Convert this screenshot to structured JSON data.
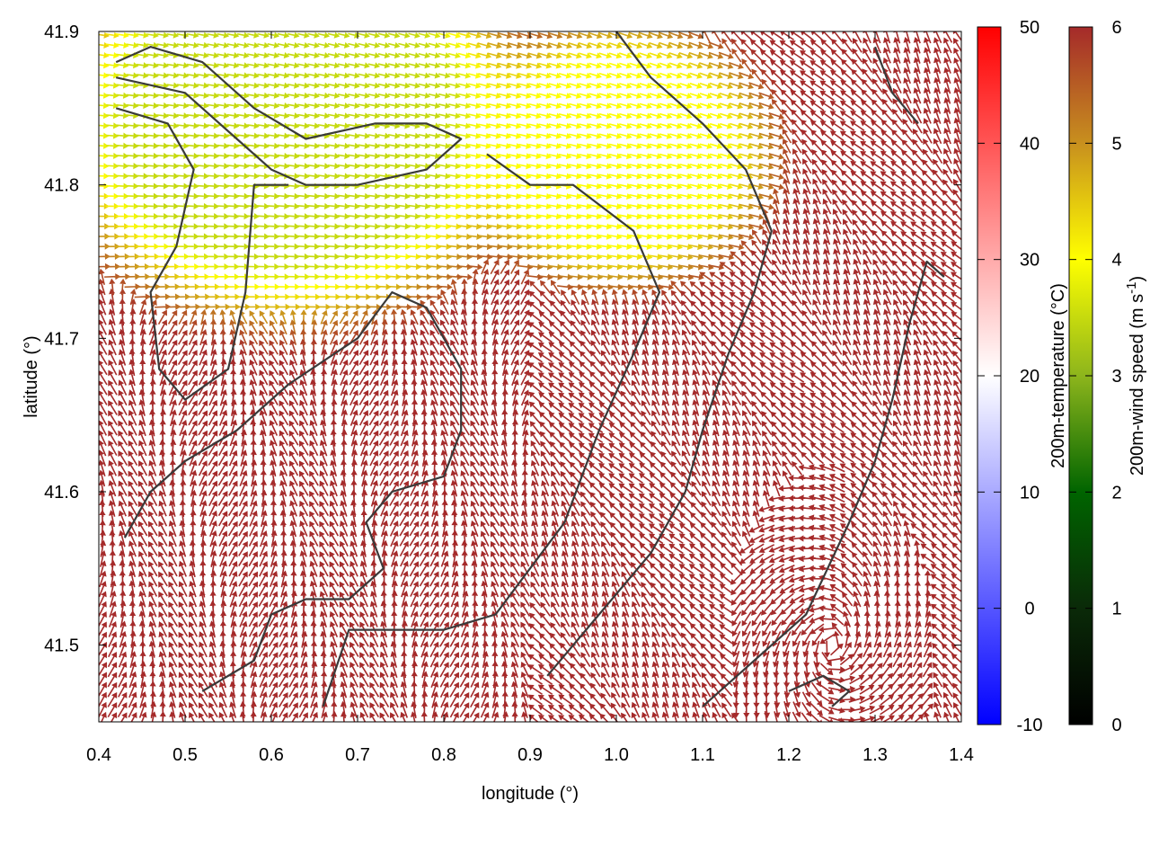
{
  "chart_data": {
    "type": "vector-field",
    "title": "",
    "xlabel": "longitude (°)",
    "ylabel": "latitude (°)",
    "xlim": [
      0.4,
      1.4
    ],
    "ylim": [
      41.45,
      41.9
    ],
    "xticks": [
      {
        "label": "0.4",
        "value": 0.4
      },
      {
        "label": "0.5",
        "value": 0.5
      },
      {
        "label": "0.6",
        "value": 0.6
      },
      {
        "label": "0.7",
        "value": 0.7
      },
      {
        "label": "0.8",
        "value": 0.8
      },
      {
        "label": "0.9",
        "value": 0.9
      },
      {
        "label": "1.0",
        "value": 1.0
      },
      {
        "label": "1.1",
        "value": 1.1
      },
      {
        "label": "1.2",
        "value": 1.2
      },
      {
        "label": "1.3",
        "value": 1.3
      },
      {
        "label": "1.4",
        "value": 1.4
      }
    ],
    "yticks": [
      {
        "label": "41.5",
        "value": 41.5
      },
      {
        "label": "41.6",
        "value": 41.6
      },
      {
        "label": "41.7",
        "value": 41.7
      },
      {
        "label": "41.8",
        "value": 41.8
      },
      {
        "label": "41.9",
        "value": 41.9
      }
    ],
    "colorbars": [
      {
        "label": "200m-temperature (°C)",
        "range": [
          -10,
          50
        ],
        "ticks": [
          {
            "label": "50",
            "value": 50
          },
          {
            "label": "40",
            "value": 40
          },
          {
            "label": "30",
            "value": 30
          },
          {
            "label": "20",
            "value": 20
          },
          {
            "label": "10",
            "value": 10
          },
          {
            "label": "0",
            "value": 0
          },
          {
            "label": "-10",
            "value": -10
          }
        ],
        "stops": [
          {
            "value": -10,
            "color": "#0000ff"
          },
          {
            "value": 20,
            "color": "#ffffff"
          },
          {
            "value": 50,
            "color": "#ff0000"
          }
        ]
      },
      {
        "label": "200m-wind speed (m s",
        "label_sup": "-1",
        "label_end": ")",
        "range": [
          0,
          6
        ],
        "ticks": [
          {
            "label": "6",
            "value": 6
          },
          {
            "label": "5",
            "value": 5
          },
          {
            "label": "4",
            "value": 4
          },
          {
            "label": "3",
            "value": 3
          },
          {
            "label": "2",
            "value": 2
          },
          {
            "label": "1",
            "value": 1
          },
          {
            "label": "0",
            "value": 0
          }
        ],
        "stops": [
          {
            "value": 0,
            "color": "#000000"
          },
          {
            "value": 1,
            "color": "#0a2a08"
          },
          {
            "value": 2,
            "color": "#006400"
          },
          {
            "value": 3,
            "color": "#8db51c"
          },
          {
            "value": 4,
            "color": "#ffff00"
          },
          {
            "value": 5,
            "color": "#c8901e"
          },
          {
            "value": 6,
            "color": "#a52a2a"
          }
        ]
      }
    ],
    "temperature_background_c": 20,
    "wind_field": {
      "speed_regions": [
        {
          "name": "calm-core",
          "center": [
            0.62,
            41.885
          ],
          "radius_deg": 0.11,
          "speed": 2.0
        },
        {
          "name": "northwest-plume",
          "center": [
            0.62,
            41.84
          ],
          "radius_deg": 0.3,
          "speed": 3.5
        },
        {
          "name": "plume-east",
          "center": [
            1.0,
            41.82
          ],
          "radius_deg": 0.2,
          "speed": 4.0
        }
      ],
      "background_speed": 6.0,
      "vortex": {
        "center": [
          1.25,
          41.5
        ],
        "radius_deg": 0.12
      }
    },
    "contours": [
      {
        "name": "coast-west-loop",
        "points": [
          [
            0.42,
            41.87
          ],
          [
            0.5,
            41.86
          ],
          [
            0.56,
            41.83
          ],
          [
            0.6,
            41.81
          ],
          [
            0.64,
            41.8
          ],
          [
            0.7,
            41.8
          ],
          [
            0.78,
            41.81
          ],
          [
            0.82,
            41.83
          ],
          [
            0.78,
            41.84
          ],
          [
            0.72,
            41.84
          ],
          [
            0.64,
            41.83
          ],
          [
            0.58,
            41.85
          ],
          [
            0.52,
            41.88
          ],
          [
            0.46,
            41.89
          ],
          [
            0.42,
            41.88
          ]
        ]
      },
      {
        "name": "isoline-west",
        "points": [
          [
            0.42,
            41.85
          ],
          [
            0.48,
            41.84
          ],
          [
            0.51,
            41.81
          ],
          [
            0.49,
            41.76
          ],
          [
            0.46,
            41.73
          ],
          [
            0.47,
            41.68
          ],
          [
            0.5,
            41.66
          ],
          [
            0.55,
            41.68
          ],
          [
            0.57,
            41.73
          ],
          [
            0.58,
            41.8
          ],
          [
            0.62,
            41.8
          ]
        ]
      },
      {
        "name": "isoline-center",
        "points": [
          [
            0.43,
            41.57
          ],
          [
            0.46,
            41.6
          ],
          [
            0.5,
            41.62
          ],
          [
            0.56,
            41.64
          ],
          [
            0.62,
            41.67
          ],
          [
            0.7,
            41.7
          ],
          [
            0.74,
            41.73
          ],
          [
            0.78,
            41.72
          ],
          [
            0.82,
            41.68
          ],
          [
            0.82,
            41.64
          ],
          [
            0.8,
            41.61
          ],
          [
            0.74,
            41.6
          ],
          [
            0.71,
            41.58
          ],
          [
            0.73,
            41.55
          ],
          [
            0.69,
            41.53
          ],
          [
            0.64,
            41.53
          ],
          [
            0.6,
            41.52
          ],
          [
            0.58,
            41.49
          ],
          [
            0.52,
            41.47
          ]
        ]
      },
      {
        "name": "isoline-south",
        "points": [
          [
            0.66,
            41.46
          ],
          [
            0.69,
            41.51
          ],
          [
            0.8,
            41.51
          ],
          [
            0.86,
            41.52
          ],
          [
            0.9,
            41.55
          ],
          [
            0.94,
            41.58
          ],
          [
            0.98,
            41.64
          ],
          [
            1.02,
            41.69
          ],
          [
            1.05,
            41.73
          ],
          [
            1.02,
            41.77
          ],
          [
            0.95,
            41.8
          ],
          [
            0.9,
            41.8
          ],
          [
            0.85,
            41.82
          ]
        ]
      },
      {
        "name": "isoline-east",
        "points": [
          [
            0.92,
            41.48
          ],
          [
            0.98,
            41.52
          ],
          [
            1.04,
            41.56
          ],
          [
            1.08,
            41.6
          ],
          [
            1.1,
            41.64
          ],
          [
            1.13,
            41.69
          ],
          [
            1.16,
            41.73
          ],
          [
            1.18,
            41.77
          ],
          [
            1.15,
            41.81
          ],
          [
            1.1,
            41.84
          ],
          [
            1.04,
            41.87
          ],
          [
            1.0,
            41.9
          ]
        ]
      },
      {
        "name": "isoline-far-east",
        "points": [
          [
            1.1,
            41.46
          ],
          [
            1.16,
            41.49
          ],
          [
            1.22,
            41.52
          ],
          [
            1.27,
            41.58
          ],
          [
            1.3,
            41.62
          ],
          [
            1.32,
            41.66
          ],
          [
            1.34,
            41.71
          ],
          [
            1.36,
            41.75
          ],
          [
            1.38,
            41.74
          ]
        ]
      },
      {
        "name": "southeast-loop",
        "points": [
          [
            1.2,
            41.47
          ],
          [
            1.24,
            41.48
          ],
          [
            1.27,
            41.47
          ],
          [
            1.25,
            41.46
          ]
        ]
      },
      {
        "name": "northeast-edge",
        "points": [
          [
            1.3,
            41.89
          ],
          [
            1.32,
            41.86
          ],
          [
            1.35,
            41.84
          ]
        ]
      }
    ]
  }
}
